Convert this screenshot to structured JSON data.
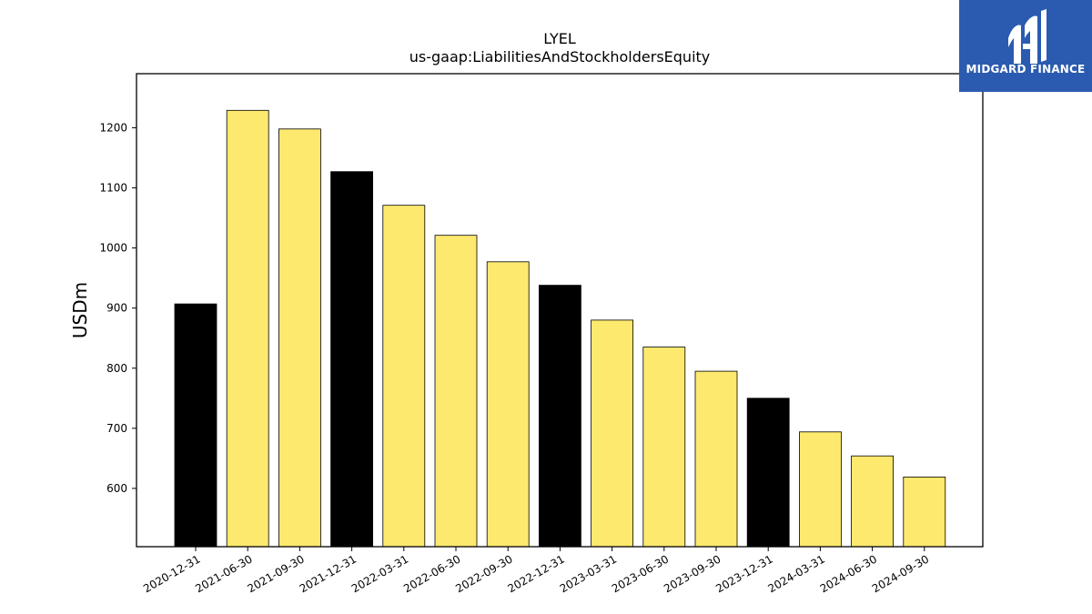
{
  "chart_data": {
    "type": "bar",
    "title": "LYEL",
    "subtitle": "us-gaap:LiabilitiesAndStockholdersEquity",
    "ylabel": "USDm",
    "xlabel": "",
    "ylim": [
      503,
      1290
    ],
    "yticks": [
      600,
      700,
      800,
      900,
      1000,
      1100,
      1200
    ],
    "grid": false,
    "categories": [
      "2020-12-31",
      "2021-06-30",
      "2021-09-30",
      "2021-12-31",
      "2022-03-31",
      "2022-06-30",
      "2022-09-30",
      "2022-12-31",
      "2023-03-31",
      "2023-06-30",
      "2023-09-30",
      "2023-12-31",
      "2024-03-31",
      "2024-06-30",
      "2024-09-30"
    ],
    "values": [
      907,
      1229,
      1198,
      1127,
      1071,
      1021,
      977,
      938,
      880,
      835,
      795,
      750,
      694,
      654,
      619
    ],
    "bar_colors": [
      "#000000",
      "#fde96e",
      "#fde96e",
      "#000000",
      "#fde96e",
      "#fde96e",
      "#fde96e",
      "#000000",
      "#fde96e",
      "#fde96e",
      "#fde96e",
      "#000000",
      "#fde96e",
      "#fde96e",
      "#fde96e"
    ]
  },
  "logo": {
    "text": "MIDGARD FINANCE",
    "icon": "midgard-logo-icon",
    "background": "#2b5bb0"
  }
}
